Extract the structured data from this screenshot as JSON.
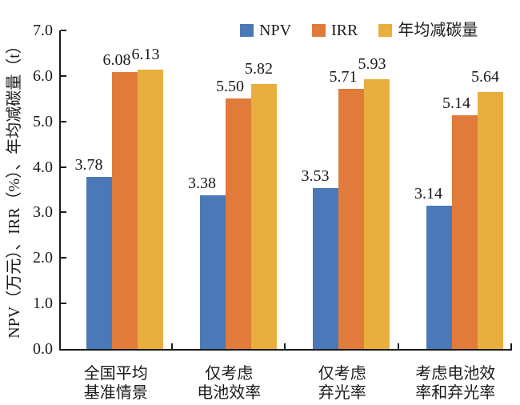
{
  "chart_data": {
    "type": "bar",
    "title": "",
    "ylabel": "NPV（万元）、IRR（%）、年均减碳量（t）",
    "xlabel": "",
    "ylim": [
      0.0,
      7.0
    ],
    "ytick_step": 1.0,
    "ytick_decimals": 1,
    "value_label_decimals": 2,
    "grid": false,
    "legend_position": "top",
    "categories": [
      [
        "全国平均",
        "基准情景"
      ],
      [
        "仅考虑",
        "电池效率"
      ],
      [
        "仅考虑",
        "弃光率"
      ],
      [
        "考虑电池效",
        "率和弃光率"
      ]
    ],
    "series": [
      {
        "name": "NPV",
        "color": "#4B79B7",
        "values": [
          3.78,
          3.38,
          3.53,
          3.14
        ]
      },
      {
        "name": "IRR",
        "color": "#E07B3C",
        "values": [
          6.08,
          5.5,
          5.71,
          5.14
        ]
      },
      {
        "name": "年均减碳量",
        "color": "#E8AE3E",
        "values": [
          6.13,
          5.82,
          5.93,
          5.64
        ]
      }
    ]
  },
  "colors": {
    "axis": "#1a1a1a",
    "text": "#1a1a1a",
    "background": "#ffffff"
  }
}
